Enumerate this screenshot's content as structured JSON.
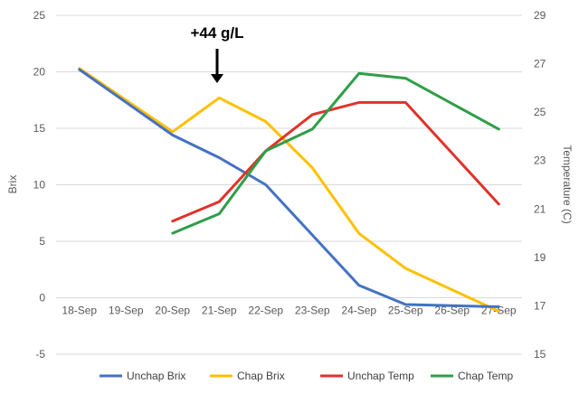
{
  "chart_data": {
    "type": "line",
    "categories": [
      "18-Sep",
      "19-Sep",
      "20-Sep",
      "21-Sep",
      "22-Sep",
      "23-Sep",
      "24-Sep",
      "25-Sep",
      "26-Sep",
      "27-Sep"
    ],
    "ylabel": "Brix",
    "y2label": "Temperature (C)",
    "ylim": [
      -5,
      25
    ],
    "y_ticks": [
      -5,
      0,
      5,
      10,
      15,
      20,
      25
    ],
    "y2lim": [
      15,
      29
    ],
    "y2_ticks": [
      15,
      17,
      19,
      21,
      23,
      25,
      27,
      29
    ],
    "grid": "horizontal",
    "legend_position": "bottom",
    "annotation": "+44 g/L",
    "annotation_category": "21-Sep",
    "series": [
      {
        "name": "Unchap Brix",
        "axis": "left",
        "color": "#4472C4",
        "values": [
          20.2,
          null,
          14.4,
          12.4,
          10.0,
          null,
          1.1,
          -0.6,
          null,
          -0.8
        ]
      },
      {
        "name": "Chap Brix",
        "axis": "left",
        "color": "#FFC000",
        "values": [
          20.3,
          null,
          14.7,
          17.7,
          15.6,
          11.5,
          5.7,
          2.6,
          null,
          -1.2
        ]
      },
      {
        "name": "Unchap Temp",
        "axis": "right",
        "color": "#E0322A",
        "values": [
          null,
          null,
          20.5,
          21.3,
          23.4,
          24.9,
          25.4,
          25.4,
          null,
          21.2
        ]
      },
      {
        "name": "Chap Temp",
        "axis": "right",
        "color": "#2E9E48",
        "values": [
          null,
          null,
          20.0,
          20.8,
          23.4,
          24.3,
          26.6,
          26.4,
          null,
          24.3
        ]
      }
    ]
  }
}
